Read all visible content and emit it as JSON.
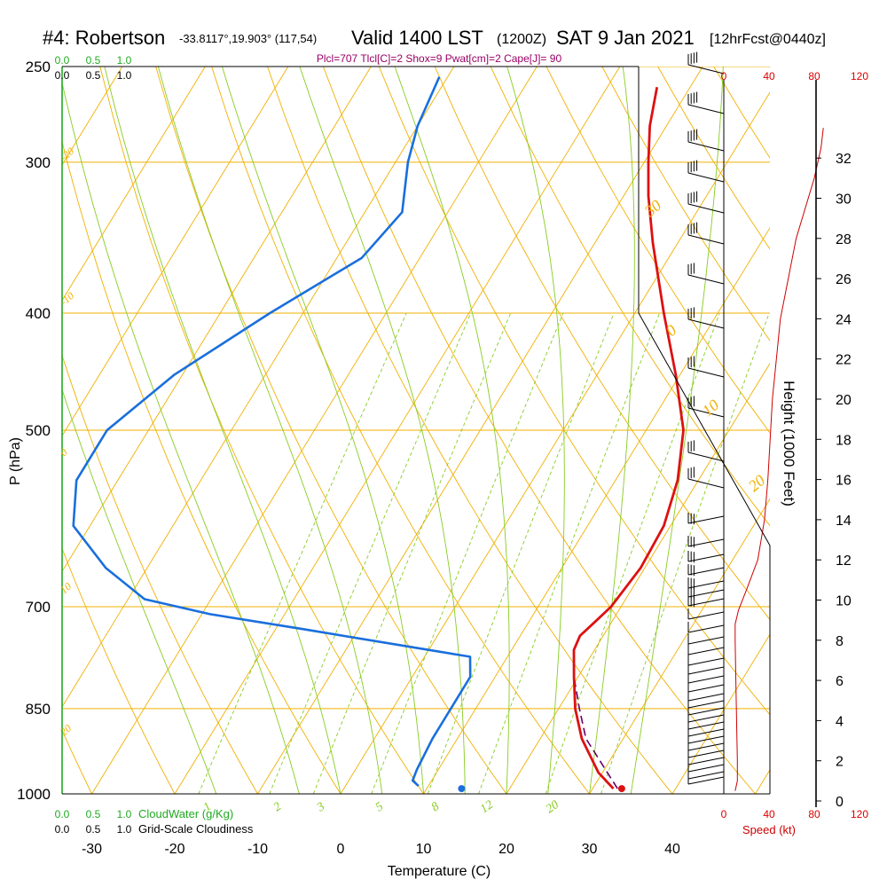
{
  "header": {
    "station": "#4: Robertson",
    "coords": "-33.8117°,19.903° (117,54)",
    "valid": "Valid 1400 LST",
    "utc": "(1200Z)",
    "date": "SAT 9 Jan 2021",
    "forecast": "[12hrFcst@0440z]",
    "indices": "Plcl=707 Tlcl[C]=2 Shox=9 Pwat[cm]=2 Cape[J]= 90"
  },
  "axes": {
    "ylabel": "P (hPa)",
    "xlabel": "Temperature (C)",
    "height_label": "Height (1000 Feet)",
    "cloud_water_label": "CloudWater (g/Kg)",
    "cloudiness_label": "Grid-Scale Cloudiness",
    "speed_label": "Speed (kt)"
  },
  "scales": {
    "cloud_water_ticks": [
      "0.0",
      "0.5",
      "1.0"
    ],
    "cloudiness_ticks": [
      "0.0",
      "0.5",
      "1.0"
    ],
    "speed_ticks": [
      "0",
      "40",
      "80",
      "120"
    ]
  },
  "colors": {
    "temperature": "#dd1111",
    "dewpoint": "#1a6fdd",
    "parcel": "#660066",
    "isotherm": "#f0b000",
    "dry_adiabat": "#f0b000",
    "moist_adiabat": "#88cc22",
    "mixing_ratio": "#88cc22",
    "cloud_water": "#22aa22",
    "wind_speed": "#cc0000"
  },
  "chart_data": {
    "type": "skew-t",
    "title": "#4: Robertson  Valid 1400 LST (1200Z) SAT 9 Jan 2021 [12hrFcst@0440z]",
    "xlabel": "Temperature (C)",
    "ylabel": "P (hPa)",
    "xlim": [
      -35,
      45
    ],
    "pressure_ticks": [
      1000,
      850,
      700,
      500,
      400,
      300,
      250
    ],
    "temperature_ticks": [
      -30,
      -20,
      -10,
      0,
      10,
      20,
      30,
      40
    ],
    "height_ticks_kft": [
      0,
      2,
      4,
      6,
      8,
      10,
      12,
      14,
      16,
      18,
      20,
      22,
      24,
      26,
      28,
      30,
      32
    ],
    "dry_adiabat_labels": [
      "-20",
      "-10",
      "0",
      "10",
      "20",
      "30",
      "0",
      "10",
      "20",
      "30"
    ],
    "mixing_ratio_labels": [
      "1",
      "2",
      "3",
      "5",
      "8",
      "12",
      "20"
    ],
    "temperature_profile": [
      {
        "p": 990,
        "t": 32.5
      },
      {
        "p": 960,
        "t": 29.5
      },
      {
        "p": 900,
        "t": 25.0
      },
      {
        "p": 850,
        "t": 22.0
      },
      {
        "p": 800,
        "t": 19.5
      },
      {
        "p": 760,
        "t": 17.5
      },
      {
        "p": 740,
        "t": 17.2
      },
      {
        "p": 720,
        "t": 18.0
      },
      {
        "p": 700,
        "t": 18.8
      },
      {
        "p": 650,
        "t": 19.5
      },
      {
        "p": 600,
        "t": 19.2
      },
      {
        "p": 550,
        "t": 17.5
      },
      {
        "p": 500,
        "t": 14.5
      },
      {
        "p": 450,
        "t": 9.5
      },
      {
        "p": 400,
        "t": 3.5
      },
      {
        "p": 350,
        "t": -3.0
      },
      {
        "p": 320,
        "t": -7.0
      },
      {
        "p": 300,
        "t": -9.5
      },
      {
        "p": 280,
        "t": -12.0
      },
      {
        "p": 260,
        "t": -14.0
      }
    ],
    "dewpoint_profile": [
      {
        "p": 985,
        "t": 8.8
      },
      {
        "p": 975,
        "t": 7.7
      },
      {
        "p": 955,
        "t": 7.4
      },
      {
        "p": 900,
        "t": 7.0
      },
      {
        "p": 800,
        "t": 7.0
      },
      {
        "p": 770,
        "t": 5.5
      },
      {
        "p": 760,
        "t": 0.0
      },
      {
        "p": 730,
        "t": -17.0
      },
      {
        "p": 710,
        "t": -29.0
      },
      {
        "p": 690,
        "t": -38.0
      },
      {
        "p": 650,
        "t": -45.0
      },
      {
        "p": 600,
        "t": -52.0
      },
      {
        "p": 550,
        "t": -55.0
      },
      {
        "p": 500,
        "t": -55.0
      },
      {
        "p": 450,
        "t": -51.0
      },
      {
        "p": 400,
        "t": -44.0
      },
      {
        "p": 360,
        "t": -37.0
      },
      {
        "p": 330,
        "t": -35.5
      },
      {
        "p": 300,
        "t": -38.5
      },
      {
        "p": 280,
        "t": -40.0
      },
      {
        "p": 255,
        "t": -41.0
      }
    ],
    "parcel_profile": [
      {
        "p": 990,
        "t": 33.0
      },
      {
        "p": 900,
        "t": 25.5
      },
      {
        "p": 850,
        "t": 22.5
      },
      {
        "p": 800,
        "t": 19.5
      },
      {
        "p": 760,
        "t": 17.5
      }
    ],
    "surface": {
      "t": 33.5,
      "td": 14.2
    },
    "wind_speed_profile": [
      {
        "height_kft": 0.5,
        "speed": 10
      },
      {
        "height_kft": 1.0,
        "speed": 12
      },
      {
        "height_kft": 2.0,
        "speed": 12
      },
      {
        "height_kft": 5.0,
        "speed": 11
      },
      {
        "height_kft": 8.0,
        "speed": 10
      },
      {
        "height_kft": 8.8,
        "speed": 10
      },
      {
        "height_kft": 9.5,
        "speed": 13
      },
      {
        "height_kft": 10.5,
        "speed": 20
      },
      {
        "height_kft": 12.0,
        "speed": 30
      },
      {
        "height_kft": 14.0,
        "speed": 36
      },
      {
        "height_kft": 16.0,
        "speed": 39
      },
      {
        "height_kft": 20.0,
        "speed": 43
      },
      {
        "height_kft": 24.0,
        "speed": 50
      },
      {
        "height_kft": 28.0,
        "speed": 64
      },
      {
        "height_kft": 31.0,
        "speed": 80
      },
      {
        "height_kft": 32.5,
        "speed": 86
      },
      {
        "height_kft": 33.5,
        "speed": 88
      }
    ],
    "speed_xlim": [
      0,
      120
    ],
    "cloud_water": [],
    "cloudiness": []
  }
}
